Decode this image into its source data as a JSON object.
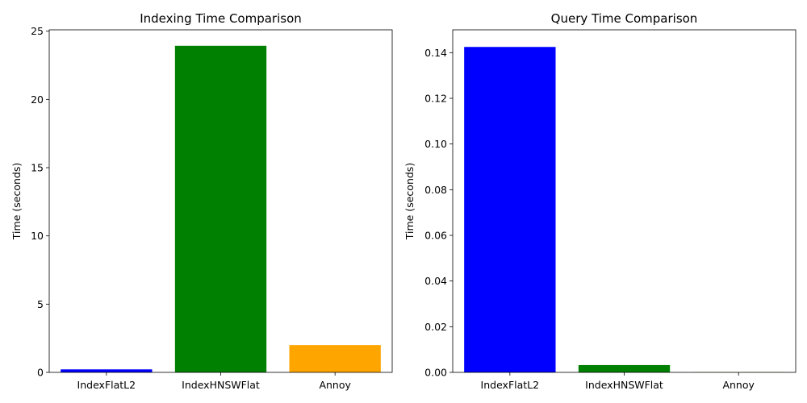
{
  "chart_data": [
    {
      "type": "bar",
      "title": "Indexing Time Comparison",
      "xlabel": "",
      "ylabel": "Time (seconds)",
      "categories": [
        "IndexFlatL2",
        "IndexHNSWFlat",
        "Annoy"
      ],
      "values": [
        0.22,
        23.93,
        2.0
      ],
      "colors": [
        "#0000ff",
        "#008000",
        "#ffa500"
      ],
      "ylim": [
        0,
        25.1
      ],
      "yticks": [
        0,
        5,
        10,
        15,
        20,
        25
      ],
      "ytick_labels": [
        "0",
        "5",
        "10",
        "15",
        "20",
        "25"
      ],
      "grid": false,
      "legend": "none"
    },
    {
      "type": "bar",
      "title": "Query Time Comparison",
      "xlabel": "",
      "ylabel": "Time (seconds)",
      "categories": [
        "IndexFlatL2",
        "IndexHNSWFlat",
        "Annoy"
      ],
      "values": [
        0.1425,
        0.0032,
        0.0001
      ],
      "colors": [
        "#0000ff",
        "#008000",
        "#ffa500"
      ],
      "ylim": [
        0,
        0.15
      ],
      "yticks": [
        0,
        0.02,
        0.04,
        0.06,
        0.08,
        0.1,
        0.12,
        0.14
      ],
      "ytick_labels": [
        "0.00",
        "0.02",
        "0.04",
        "0.06",
        "0.08",
        "0.10",
        "0.12",
        "0.14"
      ],
      "grid": false,
      "legend": "none"
    }
  ]
}
